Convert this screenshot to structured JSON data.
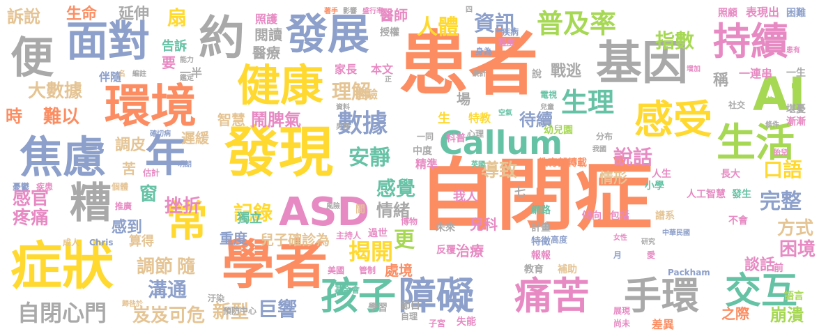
{
  "words": [
    {
      "text": "自閉症",
      "color": "#fc8d62"
    },
    {
      "text": "患者",
      "color": "#fc8d62"
    },
    {
      "text": "基因",
      "color": "#a9a9a9"
    },
    {
      "text": "發現",
      "color": "#ffd92f"
    },
    {
      "text": "學者",
      "color": "#fc8d62"
    },
    {
      "text": "環境",
      "color": "#fc8d62"
    },
    {
      "text": "症狀",
      "color": "#ffd92f"
    },
    {
      "text": "便",
      "color": "#a9a9a9"
    },
    {
      "text": "面對",
      "color": "#8da0cb"
    },
    {
      "text": "約",
      "color": "#a9a9a9"
    },
    {
      "text": "發展",
      "color": "#8da0cb"
    },
    {
      "text": "持續",
      "color": "#e78ac3"
    },
    {
      "text": "AI",
      "color": "#a6d854"
    },
    {
      "text": "健康",
      "color": "#ffd92f"
    },
    {
      "text": "焦慮",
      "color": "#8da0cb"
    },
    {
      "text": "年",
      "color": "#8da0cb"
    },
    {
      "text": "感受",
      "color": "#ffd92f"
    },
    {
      "text": "生活",
      "color": "#a6d854"
    },
    {
      "text": "Callum",
      "color": "#66c2a5"
    },
    {
      "text": "ASD",
      "color": "#e78ac3"
    },
    {
      "text": "孩子",
      "color": "#66c2a5"
    },
    {
      "text": "障礙",
      "color": "#8da0cb"
    },
    {
      "text": "痛苦",
      "color": "#e78ac3"
    },
    {
      "text": "手環",
      "color": "#a9a9a9"
    },
    {
      "text": "交互",
      "color": "#66c2a5"
    },
    {
      "text": "常",
      "color": "#ffd92f"
    },
    {
      "text": "糟",
      "color": "#a9a9a9"
    },
    {
      "text": "普及率",
      "color": "#a6d854"
    },
    {
      "text": "資訊",
      "color": "#8da0cb"
    },
    {
      "text": "人體",
      "color": "#ffd92f"
    },
    {
      "text": "指數",
      "color": "#a6d854"
    },
    {
      "text": "扇",
      "color": "#ffd92f"
    },
    {
      "text": "訴說",
      "color": "#e5c494"
    },
    {
      "text": "生命",
      "color": "#fc8d62"
    },
    {
      "text": "延伸",
      "color": "#a9a9a9"
    },
    {
      "text": "大數據",
      "color": "#e5c494"
    },
    {
      "text": "時",
      "color": "#fc8d62"
    },
    {
      "text": "難以",
      "color": "#fc8d62"
    },
    {
      "text": "理解",
      "color": "#e5c494"
    },
    {
      "text": "生理",
      "color": "#66c2a5"
    },
    {
      "text": "鬧脾氣",
      "color": "#e78ac3"
    },
    {
      "text": "數據",
      "color": "#8da0cb"
    },
    {
      "text": "安靜",
      "color": "#66c2a5"
    },
    {
      "text": "感覺",
      "color": "#66c2a5"
    },
    {
      "text": "記錄",
      "color": "#ffd92f"
    },
    {
      "text": "挫折",
      "color": "#e78ac3"
    },
    {
      "text": "窗",
      "color": "#66c2a5"
    },
    {
      "text": "感官",
      "color": "#e78ac3"
    },
    {
      "text": "疼痛",
      "color": "#e78ac3"
    },
    {
      "text": "自閉心門",
      "color": "#a9a9a9"
    },
    {
      "text": "溝通",
      "color": "#8da0cb"
    },
    {
      "text": "岌岌可危",
      "color": "#e5c494"
    },
    {
      "text": "新型",
      "color": "#e5c494"
    },
    {
      "text": "巨響",
      "color": "#8da0cb"
    },
    {
      "text": "揭開",
      "color": "#ffd92f"
    },
    {
      "text": "更",
      "color": "#a6d854"
    },
    {
      "text": "說話",
      "color": "#e78ac3"
    },
    {
      "text": "口語",
      "color": "#ffd92f"
    },
    {
      "text": "完整",
      "color": "#8da0cb"
    },
    {
      "text": "方式",
      "color": "#e5c494"
    },
    {
      "text": "困境",
      "color": "#e78ac3"
    },
    {
      "text": "談話",
      "color": "#e78ac3"
    },
    {
      "text": "崩潰",
      "color": "#a6d854"
    },
    {
      "text": "調節",
      "color": "#e5c494"
    },
    {
      "text": "隨",
      "color": "#e5c494"
    },
    {
      "text": "情緒",
      "color": "#a9a9a9"
    },
    {
      "text": "導致",
      "color": "#e5c494"
    },
    {
      "text": "待續",
      "color": "#8da0cb"
    },
    {
      "text": "情形",
      "color": "#e5c494"
    },
    {
      "text": "戰逃",
      "color": "#a9a9a9"
    },
    {
      "text": "稱",
      "color": "#a9a9a9"
    },
    {
      "text": "兒子確診為",
      "color": "#e5c494"
    },
    {
      "text": "處境",
      "color": "#fc8d62"
    },
    {
      "text": "治療",
      "color": "#e78ac3"
    },
    {
      "text": "兒科",
      "color": "#e78ac3"
    },
    {
      "text": "我人",
      "color": "#e78ac3"
    },
    {
      "text": "智慧",
      "color": "#e5c494"
    },
    {
      "text": "經驗",
      "color": "#e5c494"
    },
    {
      "text": "遲緩",
      "color": "#e5c494"
    },
    {
      "text": "調皮",
      "color": "#e5c494"
    },
    {
      "text": "苦",
      "color": "#e5c494"
    },
    {
      "text": "感到",
      "color": "#8da0cb"
    },
    {
      "text": "算得",
      "color": "#e5c494"
    },
    {
      "text": "重度",
      "color": "#8da0cb"
    },
    {
      "text": "獨立",
      "color": "#66c2a5"
    },
    {
      "text": "閱讀",
      "color": "#a9a9a9"
    },
    {
      "text": "醫療",
      "color": "#a9a9a9"
    },
    {
      "text": "照護",
      "color": "#e78ac3"
    },
    {
      "text": "醫師",
      "color": "#e78ac3"
    },
    {
      "text": "家長",
      "color": "#e78ac3"
    },
    {
      "text": "本文",
      "color": "#e78ac3"
    },
    {
      "text": "要",
      "color": "#e78ac3"
    },
    {
      "text": "告訴",
      "color": "#66c2a5"
    },
    {
      "text": "一半",
      "color": "#a9a9a9"
    },
    {
      "text": "伴隨",
      "color": "#8da0cb"
    },
    {
      "text": "場",
      "color": "#a9a9a9"
    },
    {
      "text": "精準",
      "color": "#e78ac3"
    },
    {
      "text": "科普",
      "color": "#e78ac3"
    },
    {
      "text": "生",
      "color": "#ffd92f"
    },
    {
      "text": "特教",
      "color": "#ffd92f"
    },
    {
      "text": "幼兒園",
      "color": "#a6d854"
    },
    {
      "text": "教育部轉載",
      "color": "#fc8d62"
    },
    {
      "text": "人生",
      "color": "#e78ac3"
    },
    {
      "text": "長大",
      "color": "#e78ac3"
    },
    {
      "text": "小學",
      "color": "#66c2a5"
    },
    {
      "text": "人工智慧",
      "color": "#e78ac3"
    },
    {
      "text": "發生",
      "color": "#66c2a5"
    },
    {
      "text": "傾向",
      "color": "#e78ac3"
    },
    {
      "text": "包括",
      "color": "#e78ac3"
    },
    {
      "text": "網路",
      "color": "#66c2a5"
    },
    {
      "text": "特徵",
      "color": "#8da0cb"
    },
    {
      "text": "報報",
      "color": "#e78ac3"
    },
    {
      "text": "未來",
      "color": "#a9a9a9"
    },
    {
      "text": "反覆",
      "color": "#e78ac3"
    },
    {
      "text": "計畫",
      "color": "#a9a9a9"
    },
    {
      "text": "補助",
      "color": "#e5c494"
    },
    {
      "text": "教育",
      "color": "#a9a9a9"
    },
    {
      "text": "不會",
      "color": "#e78ac3"
    },
    {
      "text": "譜系",
      "color": "#e5c494"
    },
    {
      "text": "表現出",
      "color": "#e78ac3"
    },
    {
      "text": "照顧",
      "color": "#e78ac3"
    },
    {
      "text": "困難",
      "color": "#8da0cb"
    },
    {
      "text": "一連串",
      "color": "#e78ac3"
    },
    {
      "text": "一生",
      "color": "#a9a9a9"
    },
    {
      "text": "堪憂",
      "color": "#a9a9a9"
    },
    {
      "text": "漸漸",
      "color": "#e78ac3"
    },
    {
      "text": "中",
      "color": "#a6d854"
    },
    {
      "text": "社交",
      "color": "#a9a9a9"
    },
    {
      "text": "條件",
      "color": "#a9a9a9"
    },
    {
      "text": "胎兒",
      "color": "#e78ac3"
    },
    {
      "text": "語言",
      "color": "#a6d854"
    },
    {
      "text": "前",
      "color": "#e78ac3"
    },
    {
      "text": "之際",
      "color": "#fc8d62"
    },
    {
      "text": "差異",
      "color": "#fc8d62"
    },
    {
      "text": "展現",
      "color": "#e78ac3"
    },
    {
      "text": "尚未",
      "color": "#e78ac3"
    },
    {
      "text": "失能",
      "color": "#e78ac3"
    },
    {
      "text": "節目",
      "color": "#a9a9a9"
    },
    {
      "text": "自理",
      "color": "#a9a9a9"
    },
    {
      "text": "子宮",
      "color": "#e78ac3"
    },
    {
      "text": "學習",
      "color": "#a9a9a9"
    },
    {
      "text": "基金會",
      "color": "#66c2a5"
    },
    {
      "text": "美國",
      "color": "#e78ac3"
    },
    {
      "text": "管制",
      "color": "#e78ac3"
    },
    {
      "text": "預防中心",
      "color": "#a9a9a9"
    },
    {
      "text": "汙染",
      "color": "#a9a9a9"
    },
    {
      "text": "成人",
      "color": "#e5c494"
    },
    {
      "text": "Chris",
      "color": "#8da0cb"
    },
    {
      "text": "推廣",
      "color": "#e78ac3"
    },
    {
      "text": "個體",
      "color": "#e5c494"
    },
    {
      "text": "憂鬱",
      "color": "#8da0cb"
    },
    {
      "text": "疾患",
      "color": "#e78ac3"
    },
    {
      "text": "估計",
      "color": "#e78ac3"
    },
    {
      "text": "明朗",
      "color": "#8da0cb"
    },
    {
      "text": "確切病",
      "color": "#8da0cb"
    },
    {
      "text": "間",
      "color": "#e5c494"
    },
    {
      "text": "風險",
      "color": "#a9a9a9"
    },
    {
      "text": "主持人",
      "color": "#e78ac3"
    },
    {
      "text": "過世",
      "color": "#e78ac3"
    },
    {
      "text": "博物",
      "color": "#e78ac3"
    },
    {
      "text": "七",
      "color": "#a9a9a9"
    },
    {
      "text": "英國",
      "color": "#66c2a5"
    },
    {
      "text": "中度",
      "color": "#a9a9a9"
    },
    {
      "text": "一同",
      "color": "#a9a9a9"
    },
    {
      "text": "心理",
      "color": "#a9a9a9"
    },
    {
      "text": "空氣",
      "color": "#66c2a5"
    },
    {
      "text": "兒童",
      "color": "#a9a9a9"
    },
    {
      "text": "電視",
      "color": "#66c2a5"
    },
    {
      "text": "分布",
      "color": "#a9a9a9"
    },
    {
      "text": "我國",
      "color": "#a9a9a9"
    },
    {
      "text": "男性",
      "color": "#a9a9a9"
    },
    {
      "text": "資料",
      "color": "#a9a9a9"
    },
    {
      "text": "統計",
      "color": "#a9a9a9"
    },
    {
      "text": "身為",
      "color": "#8da0cb"
    },
    {
      "text": "程度",
      "color": "#e78ac3"
    },
    {
      "text": "疾病",
      "color": "#8da0cb"
    },
    {
      "text": "授權",
      "color": "#a9a9a9"
    },
    {
      "text": "著手",
      "color": "#fc8d62"
    },
    {
      "text": "影響",
      "color": "#a9a9a9"
    },
    {
      "text": "盛行率",
      "color": "#e78ac3"
    },
    {
      "text": "四",
      "color": "#a9a9a9"
    },
    {
      "text": "正",
      "color": "#a9a9a9"
    },
    {
      "text": "能力",
      "color": "#a9a9a9"
    },
    {
      "text": "鑑定",
      "color": "#a9a9a9"
    },
    {
      "text": "名",
      "color": "#e5c494"
    },
    {
      "text": "編註",
      "color": "#a9a9a9"
    },
    {
      "text": "增加",
      "color": "#e78ac3"
    },
    {
      "text": "患有",
      "color": "#e78ac3"
    },
    {
      "text": "倍",
      "color": "#a6d854"
    },
    {
      "text": "中華民國",
      "color": "#8da0cb"
    },
    {
      "text": "女性",
      "color": "#e78ac3"
    },
    {
      "text": "研究",
      "color": "#a9a9a9"
    },
    {
      "text": "高度",
      "color": "#8da0cb"
    },
    {
      "text": "月",
      "color": "#8da0cb"
    },
    {
      "text": "愛",
      "color": "#e78ac3"
    },
    {
      "text": "Packham",
      "color": "#8da0cb"
    },
    {
      "text": "說",
      "color": "#a9a9a9"
    },
    {
      "text": "歸咎於",
      "color": "#e5c494"
    }
  ]
}
